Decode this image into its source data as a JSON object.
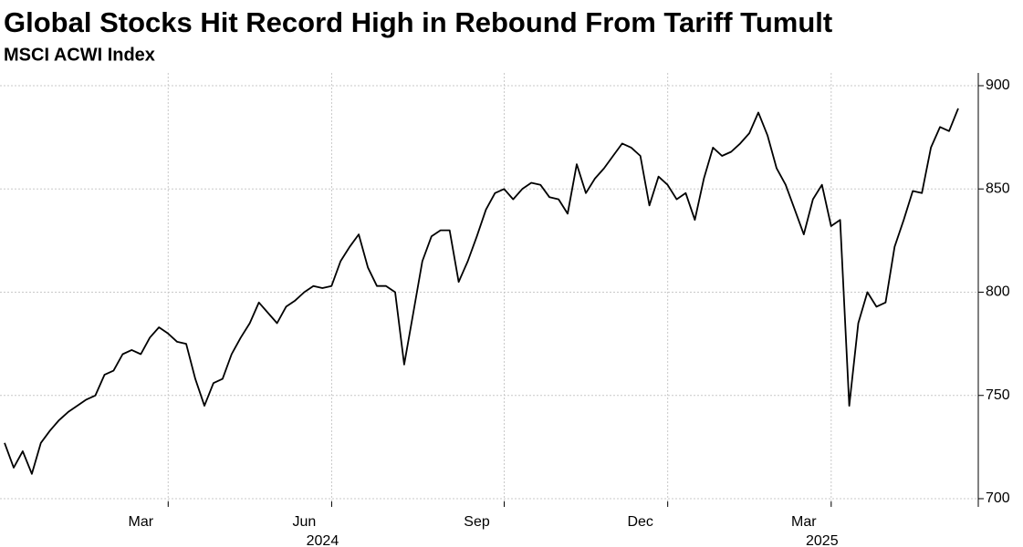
{
  "chart_data": {
    "type": "line",
    "title": "Global Stocks Hit Record High in Rebound From Tariff Tumult",
    "subtitle": "MSCI ACWI Index",
    "categories": [
      null,
      null,
      null,
      null,
      null,
      null,
      null,
      null,
      null,
      null,
      null,
      null,
      null,
      null,
      null,
      "Mar",
      null,
      null,
      null,
      null,
      null,
      null,
      null,
      null,
      null,
      null,
      null,
      null,
      null,
      null,
      null,
      null,
      null,
      "Jun",
      null,
      null,
      null,
      null,
      null,
      null,
      null,
      null,
      null,
      null,
      null,
      null,
      null,
      null,
      null,
      null,
      null,
      null,
      "Sep",
      null,
      null,
      null,
      null,
      null,
      null,
      null,
      null,
      null,
      null,
      null,
      null,
      null,
      null,
      null,
      null,
      null,
      "Dec",
      null,
      null,
      null,
      null,
      null,
      null,
      null,
      null,
      null,
      null,
      null,
      null,
      null,
      null,
      null,
      null,
      null,
      "Mar",
      null,
      null,
      null,
      null,
      null,
      null,
      null,
      null,
      null,
      null,
      null,
      null,
      null,
      null,
      null,
      null,
      null
    ],
    "year_labels": [
      "2024",
      "2025"
    ],
    "series": [
      {
        "name": "MSCI ACWI Index",
        "color": "#000000",
        "values": [
          727,
          715,
          723,
          712,
          727,
          733,
          738,
          742,
          745,
          748,
          750,
          760,
          762,
          770,
          772,
          770,
          778,
          783,
          780,
          776,
          775,
          758,
          745,
          756,
          758,
          770,
          778,
          785,
          795,
          790,
          785,
          793,
          796,
          800,
          803,
          802,
          803,
          815,
          822,
          828,
          812,
          803,
          803,
          800,
          765,
          790,
          815,
          827,
          830,
          830,
          805,
          815,
          827,
          840,
          848,
          850,
          845,
          850,
          853,
          852,
          846,
          845,
          838,
          862,
          848,
          855,
          860,
          866,
          872,
          870,
          866,
          842,
          856,
          852,
          845,
          848,
          835,
          855,
          870,
          866,
          868,
          872,
          877,
          887,
          876,
          860,
          852,
          840,
          828,
          845,
          852,
          832,
          835,
          745,
          785,
          800,
          793,
          795,
          822,
          835,
          849,
          848,
          870,
          880,
          878,
          889
        ]
      }
    ],
    "ylim": [
      700,
      900
    ],
    "yticks": [
      700,
      750,
      800,
      850,
      900
    ],
    "grid": true
  }
}
